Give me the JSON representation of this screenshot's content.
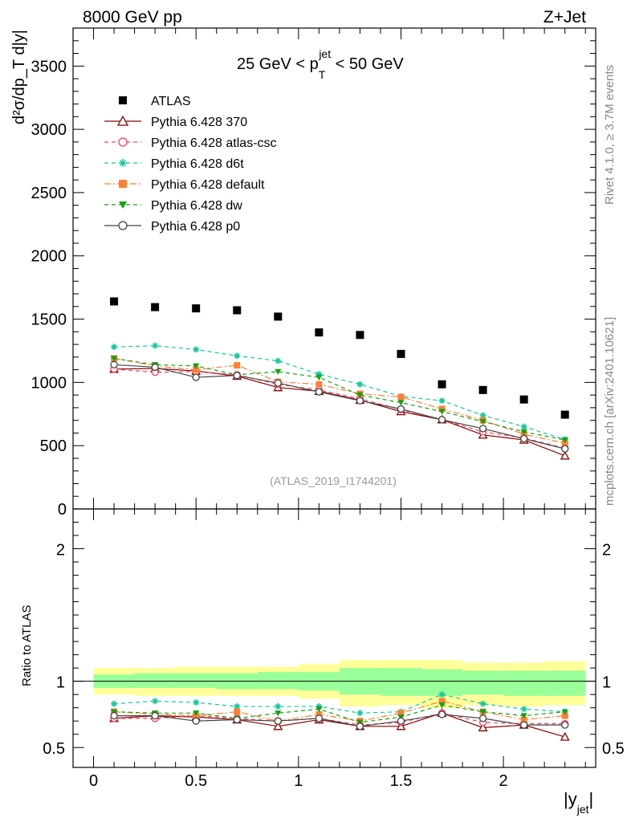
{
  "header": {
    "left": "8000 GeV pp",
    "right": "Z+Jet"
  },
  "side_labels": {
    "rivet": "Rivet 4.1.0, ≥ 3.7M events",
    "mcplots": "mcplots.cern.ch [arXiv:2401.10621]"
  },
  "chart_data": [
    {
      "type": "scatter",
      "panel": "main",
      "title_main": "25 GeV < p",
      "title_sub": "T",
      "title_sup": "jet",
      "title_tail": " < 50 GeV",
      "ylabel": "d²σ/dp_T d|y|",
      "watermark": "(ATLAS_2019_I1744201)",
      "xlim": [
        -0.1,
        2.45
      ],
      "ylim": [
        0,
        3800
      ],
      "yticks": [
        0,
        500,
        1000,
        1500,
        2000,
        2500,
        3000,
        3500
      ],
      "ytick_labels": [
        "0",
        "500",
        "1000",
        "1500",
        "2000",
        "2500",
        "3000",
        "3500"
      ],
      "legend_position": "top-left",
      "x": [
        0.1,
        0.3,
        0.5,
        0.7,
        0.9,
        1.1,
        1.3,
        1.5,
        1.7,
        1.9,
        2.1,
        2.3
      ],
      "series": [
        {
          "name": "ATLAS",
          "color": "#000000",
          "marker": "square-filled",
          "line": "none",
          "values": [
            1640,
            1595,
            1585,
            1570,
            1520,
            1395,
            1375,
            1225,
            985,
            940,
            865,
            745
          ]
        },
        {
          "name": "Pythia 6.428 370",
          "color": "#8b0000",
          "marker": "triangle-open",
          "line": "solid",
          "values": [
            1105,
            1110,
            1090,
            1050,
            960,
            930,
            860,
            770,
            705,
            585,
            545,
            420
          ]
        },
        {
          "name": "Pythia 6.428 atlas-csc",
          "color": "#ff3b5c",
          "marker": "circle-open",
          "line": "dashed",
          "values": [
            1105,
            1080,
            1085,
            1060,
            985,
            940,
            870,
            785,
            705,
            610,
            560,
            480
          ]
        },
        {
          "name": "Pythia 6.428 d6t",
          "color": "#14c89a",
          "marker": "star",
          "line": "dashed",
          "values": [
            1280,
            1290,
            1260,
            1210,
            1170,
            1065,
            985,
            890,
            855,
            740,
            650,
            550
          ]
        },
        {
          "name": "Pythia 6.428 default",
          "color": "#ff8033",
          "marker": "square-filled",
          "line": "dashdot",
          "values": [
            1190,
            1130,
            1100,
            1135,
            1005,
            985,
            910,
            885,
            790,
            700,
            590,
            520
          ]
        },
        {
          "name": "Pythia 6.428 dw",
          "color": "#14a014",
          "marker": "triangle-down-filled",
          "line": "dashed",
          "values": [
            1190,
            1140,
            1130,
            1060,
            1085,
            1040,
            900,
            840,
            770,
            690,
            610,
            545
          ]
        },
        {
          "name": "Pythia 6.428 p0",
          "color": "#444444",
          "marker": "circle-open",
          "line": "solid",
          "values": [
            1140,
            1120,
            1040,
            1055,
            995,
            925,
            855,
            790,
            705,
            635,
            555,
            475
          ]
        }
      ]
    },
    {
      "type": "line",
      "panel": "ratio",
      "ylabel": "Ratio to ATLAS",
      "xlabel_main": "|y",
      "xlabel_sub": "jet",
      "xlabel_tail": "|",
      "xlim": [
        -0.1,
        2.45
      ],
      "ylim": [
        0.35,
        2.3
      ],
      "xticks": [
        0,
        0.5,
        1,
        1.5,
        2
      ],
      "xtick_labels": [
        "0",
        "0.5",
        "1",
        "1.5",
        "2"
      ],
      "yticks": [
        0.5,
        1,
        2
      ],
      "ytick_labels": [
        "0.5",
        "1",
        "2"
      ],
      "bins": [
        [
          0.0,
          0.2
        ],
        [
          0.2,
          0.4
        ],
        [
          0.4,
          0.6
        ],
        [
          0.6,
          0.8
        ],
        [
          0.8,
          1.0
        ],
        [
          1.0,
          1.2
        ],
        [
          1.2,
          1.4
        ],
        [
          1.4,
          1.6
        ],
        [
          1.6,
          1.8
        ],
        [
          1.8,
          2.0
        ],
        [
          2.0,
          2.2
        ],
        [
          2.2,
          2.4
        ]
      ],
      "band_outer": {
        "color": "#ffff99",
        "lo": [
          0.9,
          0.89,
          0.89,
          0.89,
          0.89,
          0.87,
          0.81,
          0.82,
          0.8,
          0.82,
          0.81,
          0.82
        ],
        "hi": [
          1.1,
          1.1,
          1.11,
          1.11,
          1.11,
          1.13,
          1.16,
          1.16,
          1.16,
          1.14,
          1.14,
          1.15
        ]
      },
      "band_inner": {
        "color": "#99ff99",
        "lo": [
          0.95,
          0.95,
          0.95,
          0.94,
          0.94,
          0.93,
          0.9,
          0.89,
          0.89,
          0.9,
          0.89,
          0.89
        ],
        "hi": [
          1.05,
          1.06,
          1.06,
          1.06,
          1.07,
          1.07,
          1.1,
          1.1,
          1.09,
          1.08,
          1.08,
          1.08
        ]
      },
      "x": [
        0.1,
        0.3,
        0.5,
        0.7,
        0.9,
        1.1,
        1.3,
        1.5,
        1.7,
        1.9,
        2.1,
        2.3
      ],
      "series": [
        {
          "name": "Pythia 6.428 370",
          "color": "#8b0000",
          "marker": "triangle-open",
          "line": "solid",
          "values": [
            0.72,
            0.74,
            0.73,
            0.71,
            0.66,
            0.71,
            0.66,
            0.66,
            0.76,
            0.65,
            0.67,
            0.58
          ]
        },
        {
          "name": "Pythia 6.428 atlas-csc",
          "color": "#ff3b5c",
          "marker": "circle-open",
          "line": "dashed",
          "values": [
            0.72,
            0.72,
            0.74,
            0.72,
            0.7,
            0.72,
            0.67,
            0.69,
            0.76,
            0.69,
            0.68,
            0.68
          ]
        },
        {
          "name": "Pythia 6.428 d6t",
          "color": "#14c89a",
          "marker": "star",
          "line": "dashed",
          "values": [
            0.83,
            0.85,
            0.84,
            0.81,
            0.81,
            0.81,
            0.76,
            0.77,
            0.9,
            0.83,
            0.79,
            0.77
          ]
        },
        {
          "name": "Pythia 6.428 default",
          "color": "#ff8033",
          "marker": "square-filled",
          "line": "dashdot",
          "values": [
            0.77,
            0.75,
            0.74,
            0.77,
            0.7,
            0.75,
            0.7,
            0.76,
            0.85,
            0.77,
            0.71,
            0.74
          ]
        },
        {
          "name": "Pythia 6.428 dw",
          "color": "#14a014",
          "marker": "triangle-down-filled",
          "line": "dashed",
          "values": [
            0.77,
            0.76,
            0.76,
            0.72,
            0.76,
            0.79,
            0.69,
            0.73,
            0.82,
            0.77,
            0.74,
            0.77
          ]
        },
        {
          "name": "Pythia 6.428 p0",
          "color": "#444444",
          "marker": "circle-open",
          "line": "solid",
          "values": [
            0.74,
            0.74,
            0.7,
            0.71,
            0.7,
            0.72,
            0.66,
            0.7,
            0.75,
            0.72,
            0.67,
            0.67
          ]
        }
      ]
    }
  ]
}
